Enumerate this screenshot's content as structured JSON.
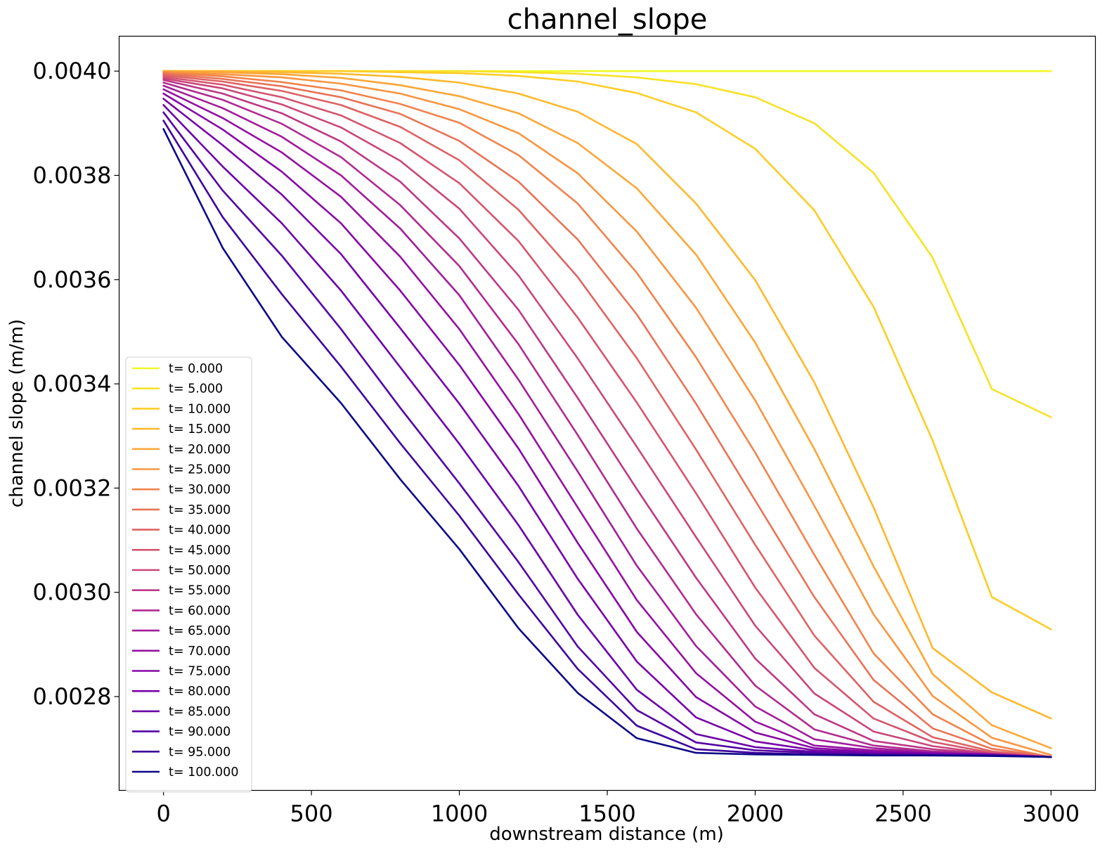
{
  "chart_data": {
    "type": "line",
    "title": "channel_slope",
    "xlabel": "downstream distance (m)",
    "ylabel": "channel slope (m/m)",
    "xlim": [
      -150,
      3150
    ],
    "ylim": [
      0.00262,
      0.004067
    ],
    "xticks": [
      0,
      500,
      1000,
      1500,
      2000,
      2500,
      3000
    ],
    "xtick_labels": [
      "0",
      "500",
      "1000",
      "1500",
      "2000",
      "2500",
      "3000"
    ],
    "yticks": [
      0.0028,
      0.003,
      0.0032,
      0.0034,
      0.0036,
      0.0038,
      0.004
    ],
    "ytick_labels": [
      "0.0028",
      "0.0030",
      "0.0032",
      "0.0034",
      "0.0036",
      "0.0038",
      "0.0040"
    ],
    "grid": false,
    "legend_position": "lower-left",
    "x": [
      0,
      200,
      400,
      600,
      800,
      1000,
      1200,
      1400,
      1600,
      1800,
      2000,
      2200,
      2400,
      2600,
      2800,
      3000
    ],
    "series": [
      {
        "name": "t= 0.000",
        "color": "#f0f921",
        "values": [
          0.004,
          0.004,
          0.004,
          0.004,
          0.004,
          0.004,
          0.004,
          0.004,
          0.004,
          0.004,
          0.004,
          0.004,
          0.004,
          0.004,
          0.004,
          0.004
        ]
      },
      {
        "name": "t= 5.000",
        "color": "#f7e225",
        "values": [
          0.004,
          0.004,
          0.004,
          0.004,
          0.004,
          0.004,
          0.003998,
          0.003995,
          0.003988,
          0.003975,
          0.00395,
          0.0039,
          0.003805,
          0.003642,
          0.00339,
          0.003336
        ]
      },
      {
        "name": "t= 10.000",
        "color": "#fccd25",
        "values": [
          0.004,
          0.004,
          0.004,
          0.004,
          0.003998,
          0.003996,
          0.003991,
          0.00398,
          0.003958,
          0.003921,
          0.003851,
          0.003733,
          0.003548,
          0.003291,
          0.002991,
          0.002929
        ]
      },
      {
        "name": "t= 15.000",
        "color": "#feb82c",
        "values": [
          0.004,
          0.004,
          0.003998,
          0.003995,
          0.003989,
          0.003978,
          0.003957,
          0.003922,
          0.00386,
          0.003746,
          0.003599,
          0.003403,
          0.003163,
          0.002893,
          0.002808,
          0.002758
        ]
      },
      {
        "name": "t= 20.000",
        "color": "#fca636",
        "values": [
          0.004,
          0.003998,
          0.003994,
          0.003987,
          0.003973,
          0.003952,
          0.003919,
          0.003862,
          0.003775,
          0.003648,
          0.003479,
          0.003275,
          0.00305,
          0.002843,
          0.002745,
          0.002701
        ]
      },
      {
        "name": "t= 25.000",
        "color": "#f89540",
        "values": [
          0.003998,
          0.003994,
          0.003988,
          0.003976,
          0.003957,
          0.003927,
          0.003881,
          0.003804,
          0.003692,
          0.003546,
          0.003368,
          0.003166,
          0.002958,
          0.002801,
          0.002721,
          0.002688
        ]
      },
      {
        "name": "t= 30.000",
        "color": "#f1834b",
        "values": [
          0.003997,
          0.00399,
          0.003979,
          0.003963,
          0.003937,
          0.003901,
          0.003839,
          0.003746,
          0.003613,
          0.003451,
          0.003268,
          0.003072,
          0.002883,
          0.002766,
          0.002707,
          0.002684
        ]
      },
      {
        "name": "t= 35.000",
        "color": "#e97257",
        "values": [
          0.003995,
          0.003985,
          0.003971,
          0.00395,
          0.003918,
          0.003866,
          0.003788,
          0.003677,
          0.003533,
          0.003362,
          0.003176,
          0.002991,
          0.002832,
          0.002739,
          0.0027,
          0.002684
        ]
      },
      {
        "name": "t= 40.000",
        "color": "#df6263",
        "values": [
          0.003992,
          0.00398,
          0.003962,
          0.003935,
          0.003893,
          0.003829,
          0.003734,
          0.003605,
          0.003449,
          0.003274,
          0.003091,
          0.002917,
          0.00279,
          0.002722,
          0.002695,
          0.002684
        ]
      },
      {
        "name": "t= 45.000",
        "color": "#d5546e",
        "values": [
          0.003989,
          0.003974,
          0.00395,
          0.003915,
          0.003862,
          0.003785,
          0.003674,
          0.003527,
          0.003364,
          0.00319,
          0.003009,
          0.002855,
          0.002758,
          0.002713,
          0.002692,
          0.002684
        ]
      },
      {
        "name": "t= 50.000",
        "color": "#ca4678",
        "values": [
          0.003986,
          0.003967,
          0.003936,
          0.003892,
          0.003828,
          0.003736,
          0.003608,
          0.003449,
          0.003279,
          0.003106,
          0.002936,
          0.002806,
          0.002733,
          0.002705,
          0.00269,
          0.002684
        ]
      },
      {
        "name": "t= 55.000",
        "color": "#bd3786",
        "values": [
          0.003983,
          0.003957,
          0.003919,
          0.003865,
          0.003788,
          0.003679,
          0.003542,
          0.003373,
          0.003198,
          0.003028,
          0.002873,
          0.002766,
          0.002715,
          0.002699,
          0.00269,
          0.002684
        ]
      },
      {
        "name": "t= 60.000",
        "color": "#b12a90",
        "values": [
          0.003978,
          0.003945,
          0.003899,
          0.003835,
          0.003743,
          0.003626,
          0.003476,
          0.003302,
          0.003122,
          0.002958,
          0.002821,
          0.002737,
          0.002706,
          0.002695,
          0.00269,
          0.002684
        ]
      },
      {
        "name": "t= 65.000",
        "color": "#a21d9a",
        "values": [
          0.003972,
          0.003929,
          0.003874,
          0.0038,
          0.003698,
          0.00357,
          0.003408,
          0.003232,
          0.003051,
          0.002897,
          0.002781,
          0.002718,
          0.002701,
          0.002693,
          0.002689,
          0.002684
        ]
      },
      {
        "name": "t= 70.000",
        "color": "#9511a1",
        "values": [
          0.003965,
          0.00391,
          0.003844,
          0.003759,
          0.003644,
          0.003505,
          0.003342,
          0.003163,
          0.002985,
          0.002845,
          0.002752,
          0.002706,
          0.002697,
          0.002692,
          0.002689,
          0.002684
        ]
      },
      {
        "name": "t= 75.000",
        "color": "#8606a6",
        "values": [
          0.003957,
          0.003888,
          0.003807,
          0.003708,
          0.003579,
          0.003436,
          0.003276,
          0.003095,
          0.002924,
          0.002799,
          0.002731,
          0.002701,
          0.002694,
          0.002691,
          0.002688,
          0.002684
        ]
      },
      {
        "name": "t= 80.000",
        "color": "#7701a8",
        "values": [
          0.003947,
          0.003858,
          0.003763,
          0.003649,
          0.003507,
          0.003362,
          0.003204,
          0.003026,
          0.002867,
          0.00276,
          0.002714,
          0.002697,
          0.002692,
          0.00269,
          0.002688,
          0.002684
        ]
      },
      {
        "name": "t= 85.000",
        "color": "#6a00a8",
        "values": [
          0.003935,
          0.003817,
          0.003708,
          0.003579,
          0.003432,
          0.003285,
          0.003129,
          0.002957,
          0.002813,
          0.002728,
          0.002703,
          0.002694,
          0.00269,
          0.002689,
          0.002688,
          0.002684
        ]
      },
      {
        "name": "t= 90.000",
        "color": "#5402a3",
        "values": [
          0.003921,
          0.003771,
          0.003646,
          0.003505,
          0.003354,
          0.003209,
          0.003058,
          0.002896,
          0.002774,
          0.002712,
          0.002697,
          0.002692,
          0.002689,
          0.002688,
          0.002687,
          0.002684
        ]
      },
      {
        "name": "t= 95.000",
        "color": "#3e049c",
        "values": [
          0.003905,
          0.00372,
          0.003572,
          0.003433,
          0.003286,
          0.003147,
          0.002996,
          0.002853,
          0.002744,
          0.002699,
          0.002692,
          0.002689,
          0.002688,
          0.002687,
          0.002687,
          0.002684
        ]
      },
      {
        "name": "t= 100.000",
        "color": "#0d0887",
        "values": [
          0.003889,
          0.003661,
          0.00349,
          0.003363,
          0.003217,
          0.003083,
          0.002931,
          0.002807,
          0.00272,
          0.002692,
          0.002689,
          0.002688,
          0.002687,
          0.002687,
          0.002686,
          0.002684
        ]
      }
    ]
  }
}
